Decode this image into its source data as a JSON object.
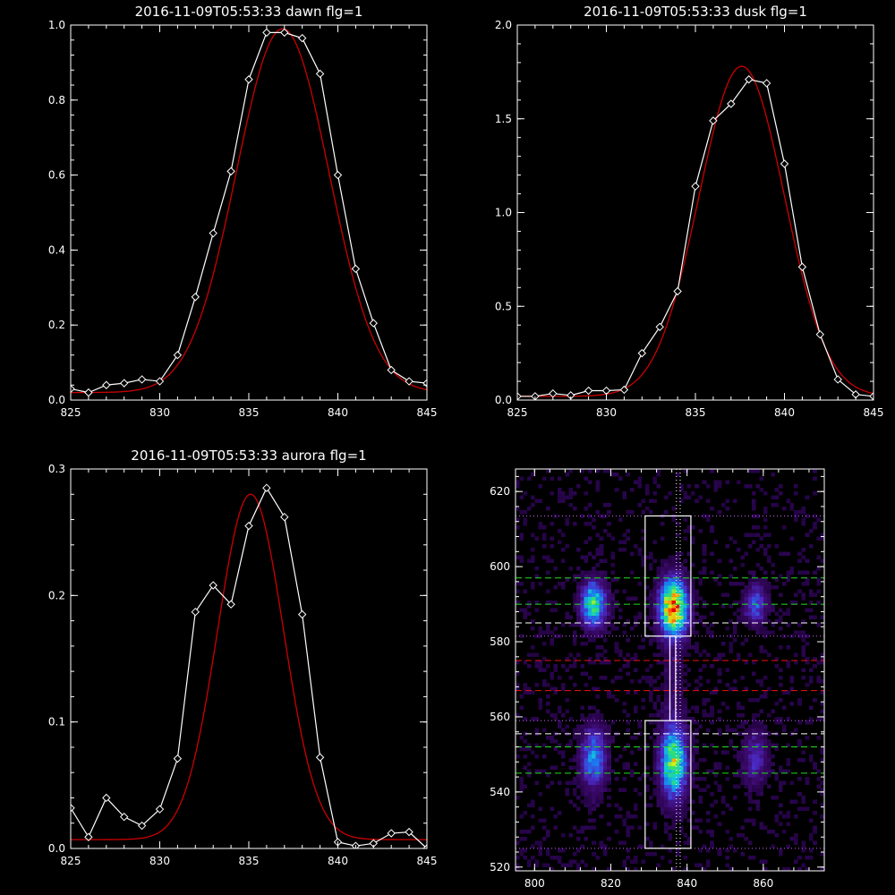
{
  "chart_data": [
    {
      "id": "dawn",
      "type": "line",
      "title": "2016-11-09T05:53:33 dawn flg=1",
      "xlim": [
        825,
        845
      ],
      "ylim": [
        0,
        1
      ],
      "xticks": [
        825,
        830,
        835,
        840,
        845
      ],
      "yticks": [
        0.0,
        0.2,
        0.4,
        0.6,
        0.8,
        1.0
      ],
      "ytick_labels": [
        "0.0",
        "0.2",
        "0.4",
        "0.6",
        "0.8",
        "1.0"
      ],
      "series": [
        {
          "color": "#ffffff",
          "marker": "diamond",
          "x": [
            825,
            826,
            827,
            828,
            829,
            830,
            831,
            832,
            833,
            834,
            835,
            836,
            837,
            838,
            839,
            840,
            841,
            842,
            843,
            844,
            845
          ],
          "y": [
            0.03,
            0.02,
            0.04,
            0.045,
            0.055,
            0.05,
            0.12,
            0.275,
            0.445,
            0.61,
            0.855,
            0.98,
            0.98,
            0.965,
            0.87,
            0.6,
            0.35,
            0.205,
            0.08,
            0.05,
            0.045
          ]
        },
        {
          "color": "#cc0000",
          "fit": "gaussian",
          "amplitude": 0.97,
          "center": 836.9,
          "sigma": 2.6,
          "offset": 0.02
        }
      ]
    },
    {
      "id": "dusk",
      "type": "line",
      "title": "2016-11-09T05:53:33 dusk flg=1",
      "xlim": [
        825,
        845
      ],
      "ylim": [
        0,
        2
      ],
      "xticks": [
        825,
        830,
        835,
        840,
        845
      ],
      "yticks": [
        0.0,
        0.5,
        1.0,
        1.5,
        2.0
      ],
      "ytick_labels": [
        "0.0",
        "0.5",
        "1.0",
        "1.5",
        "2.0"
      ],
      "series": [
        {
          "color": "#ffffff",
          "marker": "diamond",
          "x": [
            825,
            826,
            827,
            828,
            829,
            830,
            831,
            832,
            833,
            834,
            835,
            836,
            837,
            838,
            839,
            840,
            841,
            842,
            843,
            844,
            845
          ],
          "y": [
            0.02,
            0.02,
            0.035,
            0.025,
            0.05,
            0.05,
            0.055,
            0.25,
            0.39,
            0.58,
            1.14,
            1.49,
            1.58,
            1.71,
            1.69,
            1.26,
            0.71,
            0.35,
            0.11,
            0.03,
            0.02
          ]
        },
        {
          "color": "#cc0000",
          "fit": "gaussian",
          "amplitude": 1.76,
          "center": 837.6,
          "sigma": 2.4,
          "offset": 0.02
        }
      ]
    },
    {
      "id": "aurora",
      "type": "line",
      "title": "2016-11-09T05:53:33 aurora flg=1",
      "xlim": [
        825,
        845
      ],
      "ylim": [
        0,
        0.3
      ],
      "xticks": [
        825,
        830,
        835,
        840,
        845
      ],
      "yticks": [
        0.0,
        0.1,
        0.2,
        0.3
      ],
      "ytick_labels": [
        "0.0",
        "0.1",
        "0.2",
        "0.3"
      ],
      "series": [
        {
          "color": "#ffffff",
          "marker": "diamond",
          "x": [
            825,
            826,
            827,
            828,
            829,
            830,
            831,
            832,
            833,
            834,
            835,
            836,
            837,
            838,
            839,
            840,
            841,
            842,
            843,
            844,
            845
          ],
          "y": [
            0.032,
            0.009,
            0.04,
            0.025,
            0.018,
            0.031,
            0.071,
            0.187,
            0.208,
            0.193,
            0.255,
            0.285,
            0.262,
            0.185,
            0.072,
            0.005,
            0.002,
            0.004,
            0.012,
            0.013,
            0.0
          ]
        },
        {
          "color": "#cc0000",
          "fit": "gaussian",
          "amplitude": 0.273,
          "center": 835.1,
          "sigma": 1.85,
          "offset": 0.007
        }
      ]
    },
    {
      "id": "image",
      "type": "heatmap",
      "title": "",
      "xlim": [
        795,
        876
      ],
      "ylim": [
        519,
        626
      ],
      "xticks": [
        800,
        820,
        840,
        860
      ],
      "yticks": [
        520,
        540,
        560,
        580,
        600,
        620
      ],
      "colormap": [
        "#1a0033",
        "#3c0a6e",
        "#4b2cc8",
        "#1a78f0",
        "#10c8d8",
        "#30e070",
        "#d8f018",
        "#ff8c00",
        "#e80000"
      ],
      "blobs": [
        {
          "x": 815.5,
          "y": 590,
          "sx": 2.2,
          "sy": 4.0,
          "amp": 0.58
        },
        {
          "x": 815.5,
          "y": 549,
          "sx": 2.2,
          "sy": 5.5,
          "amp": 0.4
        },
        {
          "x": 836.5,
          "y": 589,
          "sx": 2.4,
          "sy": 5.0,
          "amp": 0.95
        },
        {
          "x": 836.5,
          "y": 548,
          "sx": 2.3,
          "sy": 6.5,
          "amp": 0.66
        },
        {
          "x": 836.5,
          "y": 570,
          "sx": 1.8,
          "sy": 7.0,
          "amp": 0.1
        },
        {
          "x": 858.0,
          "y": 590,
          "sx": 2.0,
          "sy": 3.5,
          "amp": 0.3
        },
        {
          "x": 858.0,
          "y": 549,
          "sx": 2.2,
          "sy": 5.0,
          "amp": 0.22
        }
      ],
      "boxes": [
        {
          "x0": 829,
          "x1": 841,
          "y0": 581.5,
          "y1": 613.5,
          "color": "#ffffff"
        },
        {
          "x0": 829,
          "x1": 841,
          "y0": 525,
          "y1": 559,
          "color": "#ffffff"
        },
        {
          "x0": 835.5,
          "x1": 837,
          "y0": 559,
          "y1": 581.5,
          "color": "#ffffff"
        }
      ],
      "hlines": [
        {
          "y": 613.5,
          "color": "#cc66ff",
          "style": "dotted"
        },
        {
          "y": 597,
          "color": "#22dd22",
          "style": "dashed"
        },
        {
          "y": 590,
          "color": "#22dd22",
          "style": "dashed"
        },
        {
          "y": 585,
          "color": "#ffffff",
          "style": "dashed"
        },
        {
          "y": 581.5,
          "color": "#cc66ff",
          "style": "dotted"
        },
        {
          "y": 575,
          "color": "#ee1111",
          "style": "dashed"
        },
        {
          "y": 567,
          "color": "#ee1111",
          "style": "dashed"
        },
        {
          "y": 559,
          "color": "#cc66ff",
          "style": "dotted"
        },
        {
          "y": 555.5,
          "color": "#ffffff",
          "style": "dashed"
        },
        {
          "y": 552,
          "color": "#22dd22",
          "style": "dashed"
        },
        {
          "y": 545,
          "color": "#22dd22",
          "style": "dashed"
        },
        {
          "y": 525,
          "color": "#cc66ff",
          "style": "dotted"
        }
      ],
      "vlines": [
        {
          "x": 837.2,
          "color": "#ffffff",
          "style": "dotted"
        },
        {
          "x": 838.2,
          "color": "#ffffff",
          "style": "dotted"
        }
      ]
    }
  ]
}
